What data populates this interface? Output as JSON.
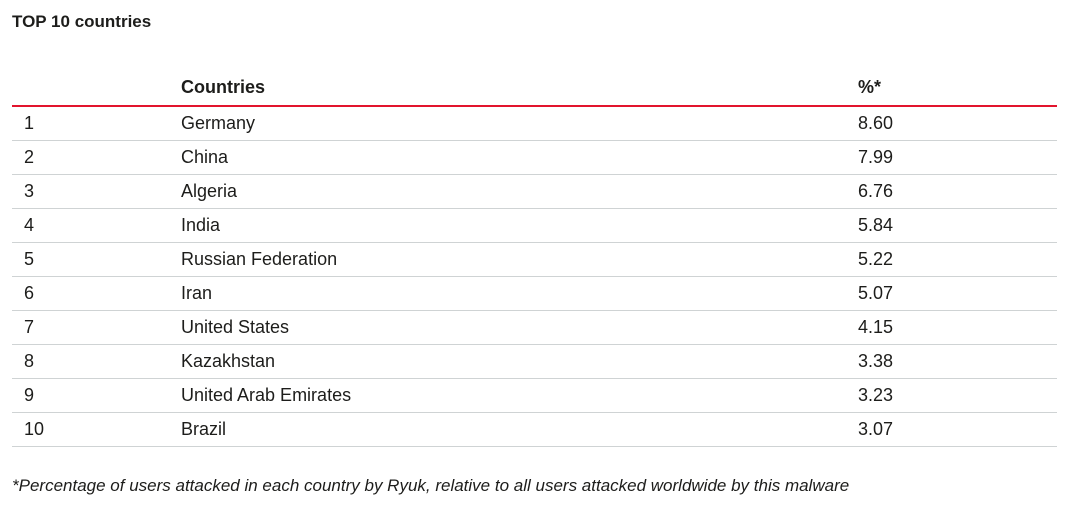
{
  "title": "TOP 10 countries",
  "table": {
    "headers": {
      "rank": "",
      "country": "Countries",
      "percent": "%*"
    },
    "rows": [
      {
        "rank": "1",
        "country": "Germany",
        "percent": "8.60"
      },
      {
        "rank": "2",
        "country": "China",
        "percent": "7.99"
      },
      {
        "rank": "3",
        "country": "Algeria",
        "percent": "6.76"
      },
      {
        "rank": "4",
        "country": "India",
        "percent": "5.84"
      },
      {
        "rank": "5",
        "country": "Russian Federation",
        "percent": "5.22"
      },
      {
        "rank": "6",
        "country": "Iran",
        "percent": "5.07"
      },
      {
        "rank": "7",
        "country": "United States",
        "percent": "4.15"
      },
      {
        "rank": "8",
        "country": "Kazakhstan",
        "percent": "3.38"
      },
      {
        "rank": "9",
        "country": "United Arab Emirates",
        "percent": "3.23"
      },
      {
        "rank": "10",
        "country": "Brazil",
        "percent": "3.07"
      }
    ]
  },
  "footnote": "*Percentage of users attacked in each country by Ryuk, relative to all users attacked worldwide by this malware",
  "colors": {
    "header_rule": "#e2142d",
    "row_rule": "#cfd3d4",
    "text": "#1d1d1b"
  }
}
